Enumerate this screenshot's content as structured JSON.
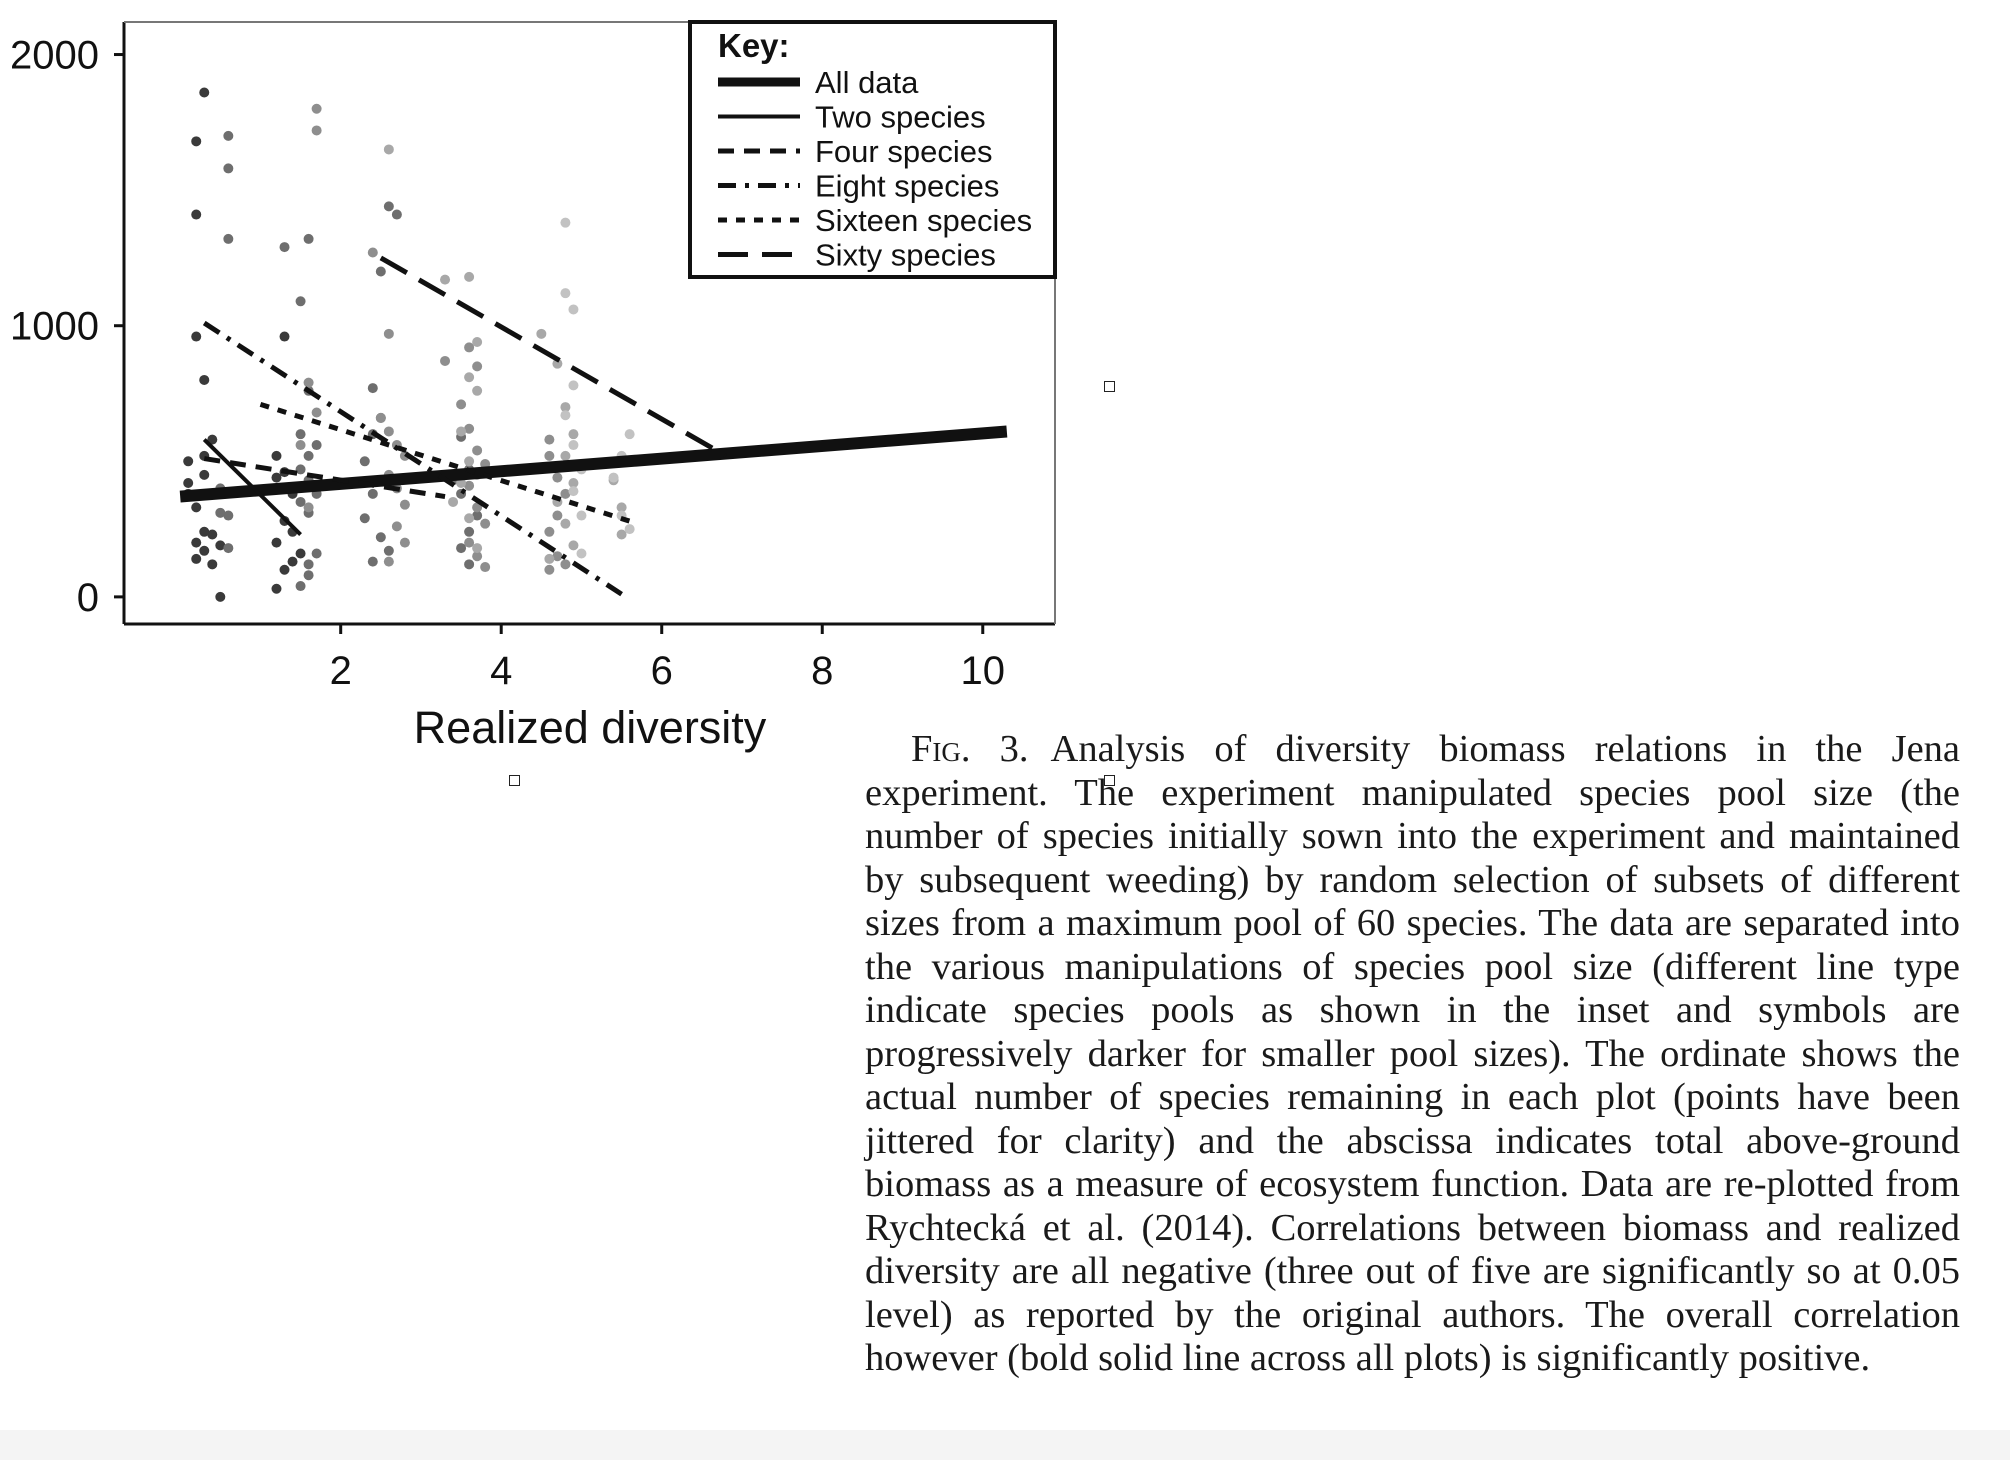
{
  "chart_data": {
    "type": "scatter",
    "title": "",
    "xlabel": "Realized diversity",
    "ylabel": "",
    "xlim": [
      -0.7,
      10.9
    ],
    "ylim": [
      -100,
      2120
    ],
    "x_ticks": [
      2,
      4,
      6,
      8,
      10
    ],
    "y_ticks": [
      0,
      1000,
      2000
    ],
    "grid": false,
    "legend": {
      "title": "Key:",
      "placement": "top-right",
      "entries": [
        "All data",
        "Two species",
        "Four species",
        "Eight species",
        "Sixteen species",
        "Sixty species"
      ]
    },
    "trend_lines": [
      {
        "name": "All data",
        "style": "bold-solid",
        "x": [
          0.0,
          10.3
        ],
        "y": [
          370,
          610
        ]
      },
      {
        "name": "Two species",
        "style": "solid",
        "x": [
          0.3,
          1.5
        ],
        "y": [
          580,
          230
        ]
      },
      {
        "name": "Four species",
        "style": "dashed",
        "x": [
          0.3,
          3.3
        ],
        "y": [
          510,
          370
        ]
      },
      {
        "name": "Eight species",
        "style": "dash-dot",
        "x": [
          0.3,
          5.5
        ],
        "y": [
          1010,
          10
        ]
      },
      {
        "name": "Sixteen species",
        "style": "dotted",
        "x": [
          1.0,
          5.7
        ],
        "y": [
          710,
          270
        ]
      },
      {
        "name": "Sixty species",
        "style": "long-dash",
        "x": [
          2.5,
          6.8
        ],
        "y": [
          1250,
          520
        ]
      }
    ],
    "series": [
      {
        "name": "Two species",
        "color": "#3a3a3a",
        "points": [
          [
            0.2,
            1680
          ],
          [
            0.2,
            1410
          ],
          [
            0.3,
            1860
          ],
          [
            0.2,
            960
          ],
          [
            0.1,
            500
          ],
          [
            0.1,
            420
          ],
          [
            0.1,
            380
          ],
          [
            0.3,
            520
          ],
          [
            0.4,
            580
          ],
          [
            0.3,
            450
          ],
          [
            0.2,
            330
          ],
          [
            0.3,
            240
          ],
          [
            0.2,
            200
          ],
          [
            0.3,
            170
          ],
          [
            0.4,
            230
          ],
          [
            0.5,
            190
          ],
          [
            0.2,
            140
          ],
          [
            0.4,
            120
          ],
          [
            0.5,
            0
          ],
          [
            0.3,
            800
          ],
          [
            1.2,
            30
          ],
          [
            1.3,
            100
          ],
          [
            1.2,
            200
          ],
          [
            1.3,
            280
          ],
          [
            1.4,
            380
          ],
          [
            1.3,
            460
          ],
          [
            1.2,
            520
          ],
          [
            1.4,
            240
          ],
          [
            1.5,
            160
          ],
          [
            1.3,
            960
          ],
          [
            1.4,
            130
          ],
          [
            1.2,
            440
          ]
        ]
      },
      {
        "name": "Four species",
        "color": "#6e6e6e",
        "points": [
          [
            0.6,
            1320
          ],
          [
            0.6,
            1580
          ],
          [
            0.6,
            1700
          ],
          [
            0.5,
            400
          ],
          [
            0.6,
            300
          ],
          [
            0.5,
            310
          ],
          [
            0.6,
            180
          ],
          [
            1.3,
            1290
          ],
          [
            1.6,
            1320
          ],
          [
            1.5,
            1090
          ],
          [
            1.6,
            760
          ],
          [
            1.5,
            600
          ],
          [
            1.7,
            560
          ],
          [
            1.6,
            520
          ],
          [
            1.5,
            470
          ],
          [
            1.6,
            430
          ],
          [
            1.7,
            380
          ],
          [
            1.5,
            350
          ],
          [
            1.6,
            310
          ],
          [
            1.7,
            160
          ],
          [
            1.6,
            120
          ],
          [
            1.6,
            80
          ],
          [
            1.5,
            40
          ],
          [
            2.4,
            770
          ],
          [
            2.5,
            660
          ],
          [
            2.4,
            600
          ],
          [
            2.3,
            500
          ],
          [
            2.5,
            430
          ],
          [
            2.4,
            380
          ],
          [
            2.3,
            290
          ],
          [
            2.5,
            220
          ],
          [
            2.6,
            170
          ],
          [
            2.4,
            130
          ],
          [
            2.6,
            1440
          ],
          [
            2.7,
            1410
          ],
          [
            2.5,
            1200
          ],
          [
            3.5,
            590
          ],
          [
            3.6,
            470
          ],
          [
            3.4,
            430
          ],
          [
            3.5,
            380
          ],
          [
            3.7,
            300
          ],
          [
            3.6,
            240
          ],
          [
            3.5,
            180
          ],
          [
            3.6,
            120
          ]
        ]
      },
      {
        "name": "Eight species",
        "color": "#8e8e8e",
        "points": [
          [
            1.7,
            1800
          ],
          [
            1.7,
            1720
          ],
          [
            1.6,
            790
          ],
          [
            1.7,
            680
          ],
          [
            1.5,
            560
          ],
          [
            1.6,
            330
          ],
          [
            2.4,
            1270
          ],
          [
            2.6,
            970
          ],
          [
            2.5,
            660
          ],
          [
            2.6,
            610
          ],
          [
            2.7,
            560
          ],
          [
            2.8,
            520
          ],
          [
            2.6,
            450
          ],
          [
            2.7,
            400
          ],
          [
            2.8,
            340
          ],
          [
            2.7,
            260
          ],
          [
            2.8,
            200
          ],
          [
            2.6,
            130
          ],
          [
            3.3,
            870
          ],
          [
            3.6,
            920
          ],
          [
            3.7,
            850
          ],
          [
            3.5,
            710
          ],
          [
            3.6,
            620
          ],
          [
            3.7,
            540
          ],
          [
            3.8,
            490
          ],
          [
            3.6,
            410
          ],
          [
            3.7,
            330
          ],
          [
            3.8,
            270
          ],
          [
            3.6,
            200
          ],
          [
            3.7,
            150
          ],
          [
            3.8,
            110
          ],
          [
            4.6,
            580
          ],
          [
            4.6,
            520
          ],
          [
            4.7,
            440
          ],
          [
            4.8,
            380
          ],
          [
            4.7,
            300
          ],
          [
            4.6,
            240
          ],
          [
            4.7,
            150
          ],
          [
            4.8,
            120
          ],
          [
            4.6,
            100
          ]
        ]
      },
      {
        "name": "Sixteen species",
        "color": "#a8a8a8",
        "points": [
          [
            2.6,
            1650
          ],
          [
            3.3,
            1170
          ],
          [
            3.6,
            1180
          ],
          [
            3.7,
            940
          ],
          [
            3.6,
            810
          ],
          [
            3.7,
            760
          ],
          [
            3.5,
            610
          ],
          [
            3.6,
            500
          ],
          [
            3.7,
            450
          ],
          [
            3.5,
            420
          ],
          [
            3.4,
            350
          ],
          [
            3.6,
            290
          ],
          [
            3.7,
            180
          ],
          [
            4.5,
            970
          ],
          [
            4.7,
            860
          ],
          [
            4.8,
            700
          ],
          [
            4.9,
            600
          ],
          [
            4.8,
            520
          ],
          [
            4.9,
            420
          ],
          [
            4.7,
            350
          ],
          [
            4.8,
            270
          ],
          [
            4.9,
            190
          ],
          [
            4.6,
            140
          ],
          [
            5.4,
            430
          ],
          [
            5.5,
            330
          ],
          [
            5.5,
            230
          ]
        ]
      },
      {
        "name": "Sixty species",
        "color": "#c2c2c2",
        "points": [
          [
            4.8,
            1380
          ],
          [
            4.8,
            1120
          ],
          [
            4.9,
            1060
          ],
          [
            4.9,
            780
          ],
          [
            4.8,
            670
          ],
          [
            4.9,
            560
          ],
          [
            5.0,
            470
          ],
          [
            4.9,
            390
          ],
          [
            5.0,
            300
          ],
          [
            5.0,
            160
          ],
          [
            5.6,
            600
          ],
          [
            5.5,
            520
          ],
          [
            5.4,
            440
          ],
          [
            5.5,
            300
          ],
          [
            5.6,
            250
          ]
        ]
      }
    ]
  },
  "caption": {
    "label": "Fig. 3.",
    "text": "Analysis of diversity biomass relations in the Jena experiment. The experiment manipulated species pool size (the number of species initially sown into the experiment and maintained by subsequent weeding) by random selection of subsets of different sizes from a maximum pool of 60 species. The data are separated into the various manipulations of species pool size (different line type indicate species pools as shown in the inset and symbols are progressively darker for smaller pool sizes). The ordinate shows the actual number of species remaining in each plot (points have been jittered for clarity) and the abscissa indicates total above-ground biomass as a measure of ecosystem function. Data are re-plotted from Rychtecká et al. (2014). Correlations between biomass and realized diversity are all negative (three out of five are significantly so at 0.05 level) as reported by the original authors. The overall correlation however (bold solid line across all plots) is significantly positive."
  }
}
